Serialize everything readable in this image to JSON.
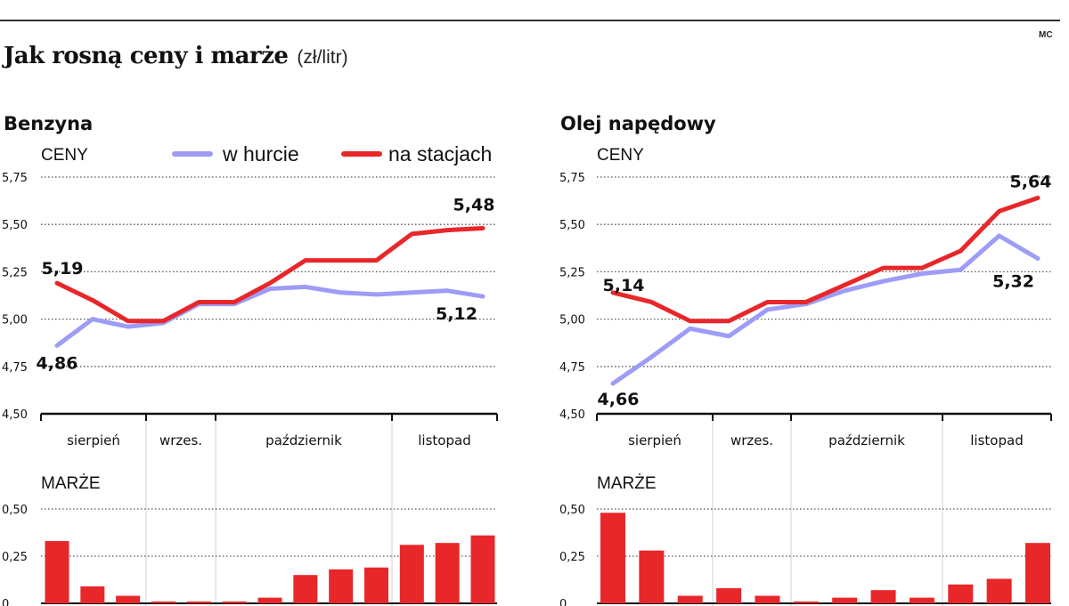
{
  "header": {
    "title": "Jak rosną ceny i marże",
    "unit": "(zł/litr)",
    "credit": "MC"
  },
  "legend": {
    "wholesale": "w hurcie",
    "retail": "na stacjach",
    "wholesale_color": "#9d9cf7",
    "retail_color": "#e8272a"
  },
  "chart_data": [
    {
      "type": "line",
      "title": "Benzyna",
      "ylabel": "CENY",
      "ylim": [
        4.5,
        5.75
      ],
      "yticks": [
        4.5,
        4.75,
        5.0,
        5.25,
        5.5,
        5.75
      ],
      "ytick_labels": [
        "4,50",
        "4,75",
        "5,00",
        "5,25",
        "5,50",
        "5,75"
      ],
      "grid": true,
      "months": [
        "sierpień",
        "wrzes.",
        "październik",
        "listopad"
      ],
      "series": [
        {
          "name": "w hurcie",
          "color": "#9d9cf7",
          "values": [
            4.86,
            5.0,
            4.96,
            4.98,
            5.08,
            5.08,
            5.16,
            5.17,
            5.14,
            5.13,
            5.14,
            5.15,
            5.12
          ],
          "first_label": "4,86",
          "last_label": "5,12"
        },
        {
          "name": "na stacjach",
          "color": "#e8272a",
          "values": [
            5.19,
            5.1,
            4.99,
            4.99,
            5.09,
            5.09,
            5.19,
            5.31,
            5.31,
            5.31,
            5.45,
            5.47,
            5.48
          ],
          "first_label": "5,19",
          "last_label": "5,48"
        }
      ]
    },
    {
      "type": "line",
      "title": "Olej napędowy",
      "ylabel": "CENY",
      "ylim": [
        4.5,
        5.75
      ],
      "yticks": [
        4.5,
        4.75,
        5.0,
        5.25,
        5.5,
        5.75
      ],
      "ytick_labels": [
        "4,50",
        "4,75",
        "5,00",
        "5,25",
        "5,50",
        "5,75"
      ],
      "grid": true,
      "months": [
        "sierpień",
        "wrzes.",
        "październik",
        "listopad"
      ],
      "series": [
        {
          "name": "w hurcie",
          "color": "#9d9cf7",
          "values": [
            4.66,
            4.8,
            4.95,
            4.91,
            5.05,
            5.08,
            5.15,
            5.2,
            5.24,
            5.26,
            5.44,
            5.32
          ],
          "first_label": "4,66",
          "last_label": "5,32"
        },
        {
          "name": "na stacjach",
          "color": "#e8272a",
          "values": [
            5.14,
            5.09,
            4.99,
            4.99,
            5.09,
            5.09,
            5.18,
            5.27,
            5.27,
            5.36,
            5.57,
            5.64
          ],
          "first_label": "5,14",
          "last_label": "5,64"
        }
      ]
    },
    {
      "type": "bar",
      "title": "MARŻE",
      "panel": "Benzyna",
      "ylim": [
        0,
        0.5
      ],
      "yticks": [
        0,
        0.25,
        0.5
      ],
      "ytick_labels": [
        "0",
        "0,25",
        "0,50"
      ],
      "color": "#e8272a",
      "values": [
        0.33,
        0.09,
        0.04,
        0.01,
        0.01,
        0.01,
        0.03,
        0.15,
        0.18,
        0.19,
        0.31,
        0.32,
        0.36
      ]
    },
    {
      "type": "bar",
      "title": "MARŻE",
      "panel": "Olej napędowy",
      "ylim": [
        0,
        0.5
      ],
      "yticks": [
        0,
        0.25,
        0.5
      ],
      "ytick_labels": [
        "0",
        "0,25",
        "0,50"
      ],
      "color": "#e8272a",
      "values": [
        0.48,
        0.28,
        0.04,
        0.08,
        0.04,
        0.01,
        0.03,
        0.07,
        0.03,
        0.1,
        0.13,
        0.32
      ]
    }
  ]
}
